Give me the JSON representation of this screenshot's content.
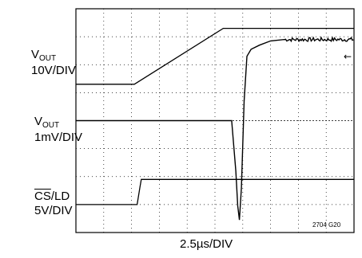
{
  "chart_data": {
    "type": "line",
    "xlabel": "2.5µs/DIV",
    "figure_id": "2704 G20",
    "x_divisions": 10,
    "y_divisions": 8,
    "x_unit_per_div_us": 2.5,
    "marker_glyph": "←",
    "channels": {
      "vout_large": {
        "label_main": "V",
        "label_sub": "OUT",
        "label_scale": "10V/DIV",
        "points": [
          [
            0,
            5.3
          ],
          [
            2.1,
            5.3
          ],
          [
            5.3,
            7.3
          ],
          [
            10,
            7.3
          ]
        ]
      },
      "vout_small": {
        "label_main": "V",
        "label_sub": "OUT",
        "label_scale": "1mV/DIV",
        "points": [
          [
            0,
            4.0
          ],
          [
            5.6,
            4.0
          ],
          [
            5.75,
            2.2
          ],
          [
            5.82,
            0.95
          ],
          [
            5.88,
            0.45
          ],
          [
            5.95,
            1.6
          ],
          [
            6.05,
            4.7
          ],
          [
            6.15,
            6.3
          ],
          [
            6.3,
            6.55
          ],
          [
            6.6,
            6.7
          ],
          [
            7.0,
            6.85
          ],
          [
            7.5,
            6.9
          ],
          [
            10,
            6.9
          ]
        ]
      },
      "cs_ld": {
        "label_overline": "CS",
        "label_rest": "/LD",
        "label_scale": "5V/DIV",
        "points": [
          [
            0,
            1.0
          ],
          [
            2.2,
            1.0
          ],
          [
            2.3,
            1.6
          ],
          [
            2.35,
            1.9
          ],
          [
            10,
            1.9
          ]
        ]
      }
    }
  }
}
